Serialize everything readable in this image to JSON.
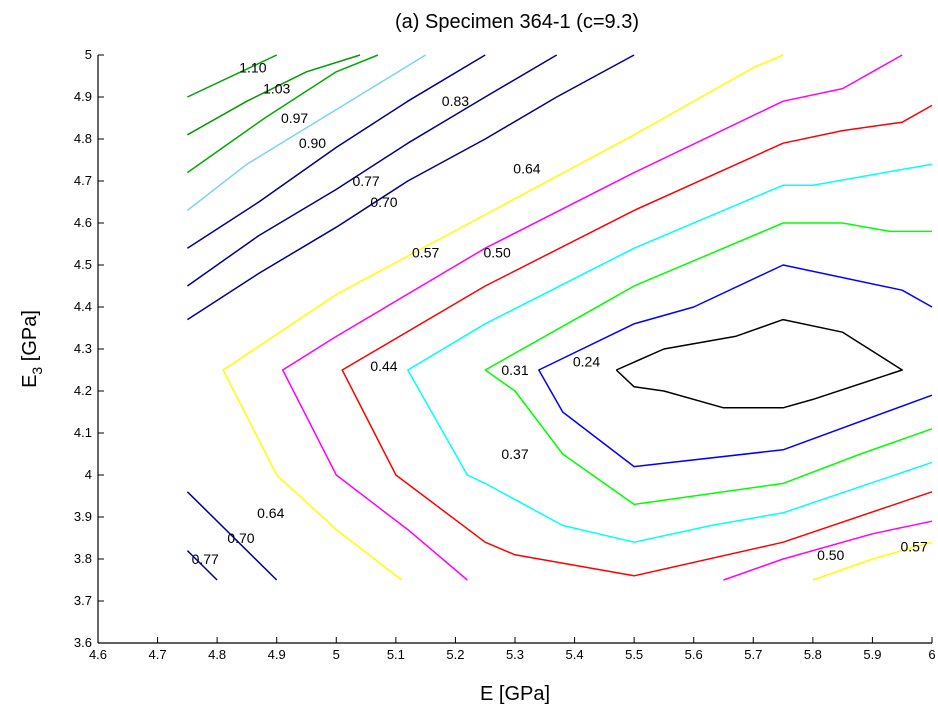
{
  "chart_data": {
    "type": "contour",
    "title": "(a) Specimen 364-1 (c=9.3)",
    "xlabel": "E [GPa]",
    "ylabel_main": "E",
    "ylabel_sub": "3",
    "ylabel_rest": " [GPa]",
    "xlim": [
      4.6,
      6.0
    ],
    "ylim": [
      3.6,
      5.0
    ],
    "xticks": [
      "4.6",
      "4.7",
      "4.8",
      "4.9",
      "5",
      "5.1",
      "5.2",
      "5.3",
      "5.4",
      "5.5",
      "5.6",
      "5.7",
      "5.8",
      "5.9",
      "6"
    ],
    "yticks": [
      "3.6",
      "3.7",
      "3.8",
      "3.9",
      "4",
      "4.1",
      "4.2",
      "4.3",
      "4.4",
      "4.5",
      "4.6",
      "4.7",
      "4.8",
      "4.9",
      "5"
    ],
    "grid": false,
    "contours": [
      {
        "level": "1.10",
        "color": "#00a000",
        "segments": [
          [
            [
              4.75,
              4.9
            ],
            [
              4.9,
              5.0
            ]
          ]
        ]
      },
      {
        "level": "1.03",
        "color": "#009900",
        "segments": [
          [
            [
              4.75,
              4.81
            ],
            [
              4.85,
              4.89
            ],
            [
              4.95,
              4.96
            ],
            [
              5.04,
              5.0
            ]
          ]
        ]
      },
      {
        "level": "0.97",
        "color": "#00aa00",
        "segments": [
          [
            [
              4.75,
              4.72
            ],
            [
              4.8,
              4.77
            ],
            [
              4.88,
              4.85
            ],
            [
              5.0,
              4.96
            ],
            [
              5.07,
              5.0
            ]
          ]
        ]
      },
      {
        "level": "0.90",
        "color": "#7dd3f0",
        "segments": [
          [
            [
              4.75,
              4.63
            ],
            [
              4.85,
              4.74
            ],
            [
              5.0,
              4.87
            ],
            [
              5.15,
              5.0
            ]
          ]
        ]
      },
      {
        "level": "0.83",
        "color": "#00008b",
        "segments": [
          [
            [
              4.75,
              4.54
            ],
            [
              4.87,
              4.65
            ],
            [
              5.0,
              4.78
            ],
            [
              5.12,
              4.89
            ],
            [
              5.25,
              5.0
            ]
          ]
        ]
      },
      {
        "level": "0.77",
        "color": "#00008b",
        "segments": [
          [
            [
              4.75,
              4.45
            ],
            [
              4.87,
              4.57
            ],
            [
              5.0,
              4.68
            ],
            [
              5.12,
              4.79
            ],
            [
              5.25,
              4.9
            ],
            [
              5.37,
              5.0
            ]
          ]
        ]
      },
      {
        "level": "0.70",
        "color": "#00008b",
        "segments": [
          [
            [
              4.75,
              4.37
            ],
            [
              4.87,
              4.48
            ],
            [
              5.0,
              4.59
            ],
            [
              5.12,
              4.7
            ],
            [
              5.25,
              4.8
            ],
            [
              5.37,
              4.9
            ],
            [
              5.5,
              5.0
            ]
          ]
        ]
      },
      {
        "level": "0.64",
        "color": "#ffff00",
        "segments": [
          [
            [
              5.75,
              5.0
            ],
            [
              5.7,
              4.97
            ],
            [
              5.5,
              4.81
            ],
            [
              5.25,
              4.62
            ],
            [
              5.0,
              4.43
            ],
            [
              4.81,
              4.25
            ],
            [
              4.9,
              4.0
            ],
            [
              5.0,
              3.87
            ],
            [
              5.11,
              3.75
            ]
          ]
        ]
      },
      {
        "level": "0.57",
        "color": "#ffff00",
        "segments": [
          [
            [
              5.8,
              3.75
            ],
            [
              5.9,
              3.8
            ],
            [
              6.0,
              3.84
            ]
          ]
        ]
      },
      {
        "level": "0.50",
        "color": "#ff00ff",
        "segments": [
          [
            [
              5.95,
              5.0
            ],
            [
              5.85,
              4.92
            ],
            [
              5.75,
              4.89
            ],
            [
              5.5,
              4.72
            ],
            [
              5.25,
              4.54
            ],
            [
              5.0,
              4.33
            ],
            [
              4.91,
              4.25
            ],
            [
              5.0,
              4.0
            ],
            [
              5.12,
              3.87
            ],
            [
              5.22,
              3.75
            ]
          ]
        ]
      },
      {
        "level": "0.50",
        "color": "#ff00ff",
        "segments": [
          [
            [
              5.65,
              3.75
            ],
            [
              5.75,
              3.8
            ],
            [
              5.9,
              3.86
            ],
            [
              6.0,
              3.89
            ]
          ]
        ]
      },
      {
        "level": "0.44",
        "color": "#ff0000",
        "segments": [
          [
            [
              6.0,
              4.88
            ],
            [
              5.95,
              4.84
            ],
            [
              5.85,
              4.82
            ],
            [
              5.75,
              4.79
            ],
            [
              5.5,
              4.63
            ],
            [
              5.25,
              4.45
            ],
            [
              5.01,
              4.25
            ],
            [
              5.1,
              4.0
            ],
            [
              5.25,
              3.84
            ],
            [
              5.3,
              3.81
            ],
            [
              5.5,
              3.76
            ],
            [
              5.75,
              3.84
            ],
            [
              6.0,
              3.96
            ]
          ]
        ]
      },
      {
        "level": "0.37",
        "color": "#00ffff",
        "segments": [
          [
            [
              6.0,
              4.74
            ],
            [
              5.8,
              4.69
            ],
            [
              5.75,
              4.69
            ],
            [
              5.5,
              4.54
            ],
            [
              5.25,
              4.36
            ],
            [
              5.12,
              4.25
            ],
            [
              5.22,
              4.0
            ],
            [
              5.25,
              3.98
            ],
            [
              5.38,
              3.88
            ],
            [
              5.5,
              3.84
            ],
            [
              5.63,
              3.88
            ],
            [
              5.75,
              3.91
            ],
            [
              6.0,
              4.03
            ]
          ]
        ]
      },
      {
        "level": "0.31",
        "color": "#00ff00",
        "segments": [
          [
            [
              6.0,
              4.58
            ],
            [
              5.93,
              4.58
            ],
            [
              5.85,
              4.6
            ],
            [
              5.75,
              4.6
            ],
            [
              5.5,
              4.45
            ],
            [
              5.45,
              4.41
            ],
            [
              5.25,
              4.25
            ],
            [
              5.3,
              4.2
            ],
            [
              5.38,
              4.05
            ],
            [
              5.5,
              3.93
            ],
            [
              5.6,
              3.95
            ],
            [
              5.75,
              3.98
            ],
            [
              5.88,
              4.05
            ],
            [
              6.0,
              4.11
            ]
          ]
        ]
      },
      {
        "level": "0.24",
        "color": "#0000ff",
        "segments": [
          [
            [
              6.0,
              4.4
            ],
            [
              5.95,
              4.44
            ],
            [
              5.75,
              4.5
            ],
            [
              5.6,
              4.4
            ],
            [
              5.5,
              4.36
            ],
            [
              5.34,
              4.25
            ],
            [
              5.38,
              4.15
            ],
            [
              5.5,
              4.02
            ],
            [
              5.75,
              4.06
            ],
            [
              6.0,
              4.19
            ]
          ]
        ]
      },
      {
        "level": "",
        "color": "#000000",
        "segments": [
          [
            [
              5.47,
              4.25
            ],
            [
              5.55,
              4.3
            ],
            [
              5.67,
              4.33
            ],
            [
              5.75,
              4.37
            ],
            [
              5.85,
              4.34
            ],
            [
              5.95,
              4.25
            ],
            [
              5.8,
              4.18
            ],
            [
              5.75,
              4.16
            ],
            [
              5.65,
              4.16
            ],
            [
              5.55,
              4.2
            ],
            [
              5.5,
              4.21
            ],
            [
              5.47,
              4.25
            ]
          ]
        ]
      },
      {
        "level": "0.70",
        "color": "#00008b",
        "segments": [
          [
            [
              4.75,
              3.96
            ],
            [
              4.9,
              3.75
            ]
          ]
        ]
      },
      {
        "level": "0.77",
        "color": "#00008b",
        "segments": [
          [
            [
              4.75,
              3.82
            ],
            [
              4.8,
              3.75
            ]
          ]
        ]
      }
    ],
    "labels": [
      {
        "text": "1.10",
        "x": 4.86,
        "y": 4.97
      },
      {
        "text": "1.03",
        "x": 4.9,
        "y": 4.92
      },
      {
        "text": "0.97",
        "x": 4.93,
        "y": 4.85
      },
      {
        "text": "0.90",
        "x": 4.96,
        "y": 4.79
      },
      {
        "text": "0.83",
        "x": 5.2,
        "y": 4.89
      },
      {
        "text": "0.77",
        "x": 5.05,
        "y": 4.7
      },
      {
        "text": "0.70",
        "x": 5.08,
        "y": 4.65
      },
      {
        "text": "0.64",
        "x": 5.32,
        "y": 4.73
      },
      {
        "text": "0.57",
        "x": 5.15,
        "y": 4.53
      },
      {
        "text": "0.50",
        "x": 5.27,
        "y": 4.53
      },
      {
        "text": "0.44",
        "x": 5.08,
        "y": 4.26
      },
      {
        "text": "0.31",
        "x": 5.3,
        "y": 4.25
      },
      {
        "text": "0.24",
        "x": 5.42,
        "y": 4.27
      },
      {
        "text": "0.37",
        "x": 5.3,
        "y": 4.05
      },
      {
        "text": "0.64",
        "x": 4.89,
        "y": 3.91
      },
      {
        "text": "0.70",
        "x": 4.84,
        "y": 3.85
      },
      {
        "text": "0.77",
        "x": 4.78,
        "y": 3.8
      },
      {
        "text": "0.50",
        "x": 5.83,
        "y": 3.81
      },
      {
        "text": "0.57",
        "x": 5.97,
        "y": 3.83
      }
    ]
  }
}
